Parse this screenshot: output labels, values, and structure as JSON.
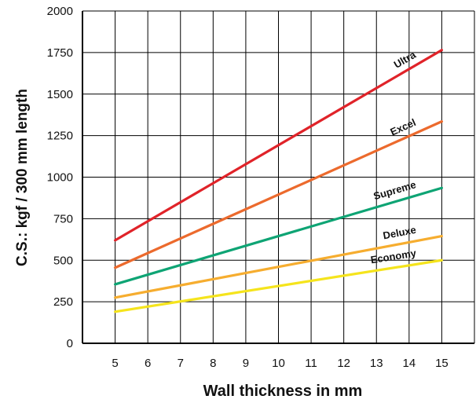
{
  "chart_data": {
    "type": "line",
    "title": "",
    "xlabel": "Wall thickness in mm",
    "ylabel": "C.S.: kgf / 300 mm length",
    "x": [
      5,
      15
    ],
    "xlim": [
      4,
      16
    ],
    "ylim": [
      0,
      2000
    ],
    "xticks": [
      "5",
      "6",
      "7",
      "8",
      "9",
      "10",
      "11",
      "12",
      "13",
      "14",
      "15"
    ],
    "yticks": [
      "0",
      "250",
      "500",
      "750",
      "1000",
      "1250",
      "1500",
      "1750",
      "2000"
    ],
    "grid": true,
    "legend": "none",
    "series": [
      {
        "name": "Ultra",
        "color": "#e02329",
        "values": [
          620,
          1765
        ]
      },
      {
        "name": "Excel",
        "color": "#ec6a2d",
        "values": [
          455,
          1335
        ]
      },
      {
        "name": "Supreme",
        "color": "#0ea474",
        "values": [
          355,
          935
        ]
      },
      {
        "name": "Deluxe",
        "color": "#f6ad2f",
        "values": [
          275,
          645
        ]
      },
      {
        "name": "Economy",
        "color": "#f5e41c",
        "values": [
          190,
          500
        ]
      }
    ]
  }
}
